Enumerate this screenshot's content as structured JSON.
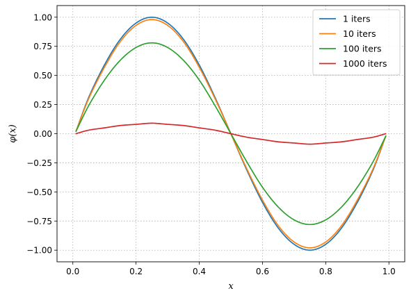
{
  "chart_data": {
    "type": "line",
    "title": "",
    "xlabel": "x",
    "ylabel": "φ(x)",
    "xlim": [
      -0.05,
      1.05
    ],
    "ylim": [
      -1.1,
      1.1
    ],
    "xticks": [
      0.0,
      0.2,
      0.4,
      0.6,
      0.8,
      1.0
    ],
    "xtick_labels": [
      "0.0",
      "0.2",
      "0.4",
      "0.6",
      "0.8",
      "1.0"
    ],
    "yticks": [
      -1.0,
      -0.75,
      -0.5,
      -0.25,
      0.0,
      0.25,
      0.5,
      0.75,
      1.0
    ],
    "ytick_labels": [
      "−1.00",
      "−0.75",
      "−0.50",
      "−0.25",
      "0.00",
      "0.25",
      "0.50",
      "0.75",
      "1.00"
    ],
    "grid": true,
    "legend_position": "top-right",
    "x": [
      0.01,
      0.05,
      0.1,
      0.15,
      0.2,
      0.25,
      0.3,
      0.35,
      0.4,
      0.45,
      0.5,
      0.55,
      0.6,
      0.65,
      0.7,
      0.75,
      0.8,
      0.85,
      0.9,
      0.95,
      0.99
    ],
    "series": [
      {
        "name": "1 iters",
        "color": "#1f77b4",
        "values": [
          0.02,
          0.31,
          0.59,
          0.81,
          0.95,
          1.0,
          0.95,
          0.81,
          0.59,
          0.31,
          0.0,
          -0.31,
          -0.59,
          -0.81,
          -0.95,
          -1.0,
          -0.95,
          -0.81,
          -0.59,
          -0.31,
          -0.02
        ]
      },
      {
        "name": "10 iters",
        "color": "#ff7f0e",
        "values": [
          0.02,
          0.3,
          0.57,
          0.79,
          0.93,
          0.98,
          0.93,
          0.79,
          0.57,
          0.3,
          0.0,
          -0.3,
          -0.57,
          -0.79,
          -0.93,
          -0.98,
          -0.93,
          -0.79,
          -0.57,
          -0.3,
          -0.02
        ]
      },
      {
        "name": "100 iters",
        "color": "#2ca02c",
        "values": [
          0.02,
          0.24,
          0.46,
          0.63,
          0.74,
          0.78,
          0.74,
          0.63,
          0.46,
          0.24,
          0.0,
          -0.24,
          -0.46,
          -0.63,
          -0.74,
          -0.78,
          -0.74,
          -0.63,
          -0.46,
          -0.24,
          -0.02
        ]
      },
      {
        "name": "1000 iters",
        "color": "#d62728",
        "values": [
          0.0,
          0.03,
          0.05,
          0.07,
          0.08,
          0.09,
          0.08,
          0.07,
          0.05,
          0.03,
          0.0,
          -0.03,
          -0.05,
          -0.07,
          -0.08,
          -0.09,
          -0.08,
          -0.07,
          -0.05,
          -0.03,
          0.0
        ]
      }
    ]
  }
}
